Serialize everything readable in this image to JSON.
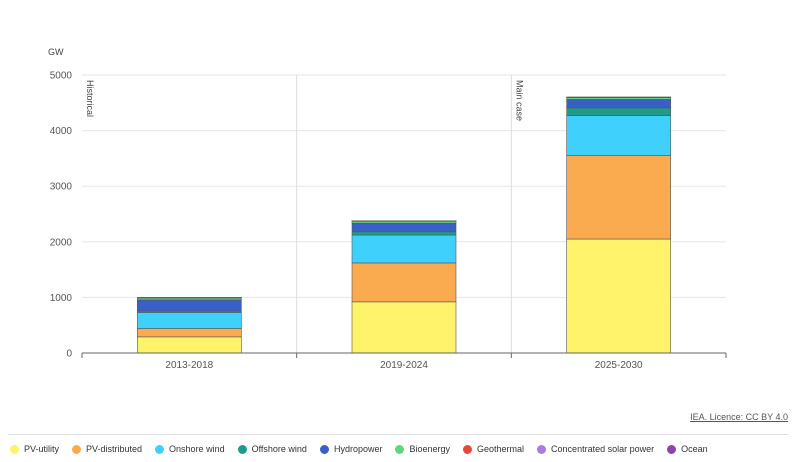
{
  "chart_data": {
    "type": "bar",
    "stacked": true,
    "title": "",
    "ylabel": "GW",
    "ylim": [
      0,
      5000
    ],
    "yticks": [
      0,
      1000,
      2000,
      3000,
      4000,
      5000
    ],
    "categories": [
      "2013-2018",
      "2019-2024",
      "2025-2030"
    ],
    "annotations": [
      "Historical",
      "Main case"
    ],
    "series": [
      {
        "name": "PV-utility",
        "color": "#fef36b",
        "values": [
          290,
          920,
          2050
        ]
      },
      {
        "name": "PV-distributed",
        "color": "#fbab4f",
        "values": [
          150,
          700,
          1500
        ]
      },
      {
        "name": "Onshore wind",
        "color": "#3fd1fb",
        "values": [
          290,
          500,
          720
        ]
      },
      {
        "name": "Offshore wind",
        "color": "#1e9b8a",
        "values": [
          25,
          60,
          140
        ]
      },
      {
        "name": "Hydropower",
        "color": "#3a5fc6",
        "values": [
          200,
          155,
          150
        ]
      },
      {
        "name": "Bioenergy",
        "color": "#5fd67e",
        "values": [
          35,
          35,
          35
        ]
      },
      {
        "name": "Geothermal",
        "color": "#e8463b",
        "values": [
          5,
          5,
          5
        ]
      },
      {
        "name": "Concentrated solar power",
        "color": "#a77de3",
        "values": [
          2,
          2,
          2
        ]
      },
      {
        "name": "Ocean",
        "color": "#8e44ad",
        "values": [
          1,
          1,
          1
        ]
      }
    ],
    "grid": true,
    "legend": "bottom"
  },
  "credit": "IEA. Licence: CC BY 4.0"
}
